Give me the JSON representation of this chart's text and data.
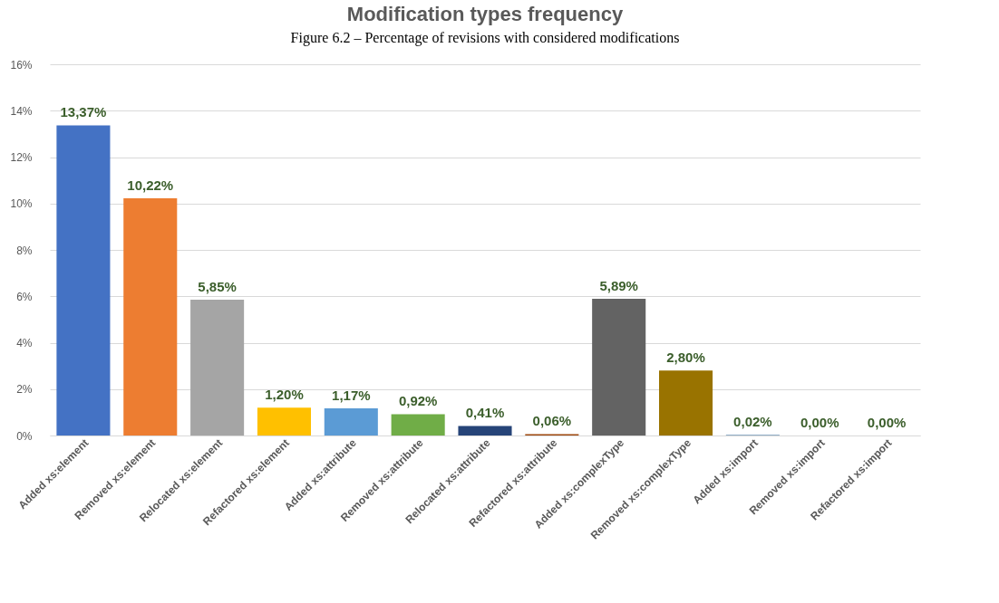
{
  "chart_data": {
    "type": "bar",
    "title": "Modification types frequency",
    "annotations": [
      "Figure 6.2 – Percentage of revisions with considered modifications"
    ],
    "categories": [
      "Added xs:element",
      "Removed xs:element",
      "Relocated xs:element",
      "Refactored xs:element",
      "Added xs:attribute",
      "Removed xs:attribute",
      "Relocated xs:attribute",
      "Refactored xs:attribute",
      "Added xs:complexType",
      "Removed xs:complexType",
      "Added xs:import",
      "Removed xs:import",
      "Refactored xs:import"
    ],
    "values": [
      13.37,
      10.22,
      5.85,
      1.2,
      1.17,
      0.92,
      0.41,
      0.06,
      5.89,
      2.8,
      0.02,
      0.0,
      0.0
    ],
    "value_labels": [
      "13,37%",
      "10,22%",
      "5,85%",
      "1,20%",
      "1,17%",
      "0,92%",
      "0,41%",
      "0,06%",
      "5,89%",
      "2,80%",
      "0,02%",
      "0,00%",
      "0,00%"
    ],
    "colors": [
      "#4472c4",
      "#ed7d31",
      "#a5a5a5",
      "#ffc000",
      "#5b9bd5",
      "#70ad47",
      "#264478",
      "#9e480e",
      "#636363",
      "#997300",
      "#255e91",
      "#43682b",
      "#698ed0"
    ],
    "ylim": [
      0,
      16
    ],
    "yticks": [
      {
        "value": 0,
        "label": "0%"
      },
      {
        "value": 2,
        "label": "2%"
      },
      {
        "value": 4,
        "label": "4%"
      },
      {
        "value": 6,
        "label": "6%"
      },
      {
        "value": 8,
        "label": "8%"
      },
      {
        "value": 10,
        "label": "10%"
      },
      {
        "value": 12,
        "label": "12%"
      },
      {
        "value": 14,
        "label": "14%"
      },
      {
        "value": 16,
        "label": "16%"
      }
    ],
    "grid": "y"
  }
}
